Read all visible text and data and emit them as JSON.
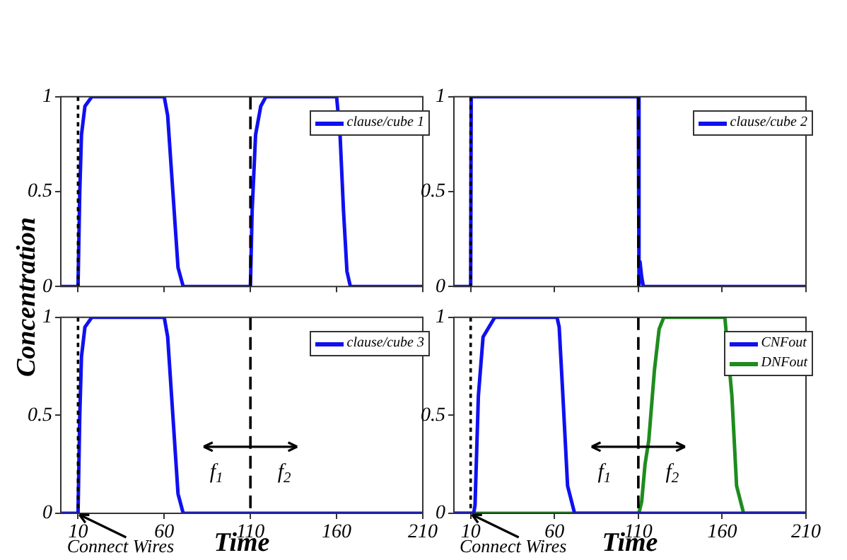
{
  "chart_data": [
    {
      "type": "line",
      "ylabel": "Concentration",
      "xlim": [
        0,
        210
      ],
      "ylim": [
        0,
        1
      ],
      "xticks": [
        10,
        60,
        110,
        160,
        210
      ],
      "yticks": [
        0,
        0.5,
        1
      ],
      "tick_labels": "y",
      "grid": false,
      "legend": "top right",
      "marker": "none",
      "line_style": "solid",
      "series": [
        {
          "name": "clause/cube 1",
          "color": "#1010f0",
          "x": [
            0,
            10,
            11,
            12,
            14,
            18,
            60,
            62,
            65,
            68,
            71,
            110,
            111,
            113,
            116,
            119,
            160,
            162,
            164,
            166,
            168,
            210
          ],
          "values": [
            0,
            0,
            0.5,
            0.8,
            0.95,
            1,
            1,
            0.9,
            0.5,
            0.1,
            0,
            0,
            0.4,
            0.8,
            0.95,
            1,
            1,
            0.8,
            0.4,
            0.08,
            0,
            0
          ]
        }
      ],
      "ref_lines": [
        {
          "axis": "x",
          "value": 10,
          "color": "#000000",
          "line_style": "dotted"
        },
        {
          "axis": "x",
          "value": 110,
          "color": "#000000",
          "line_style": "dashed"
        }
      ]
    },
    {
      "type": "line",
      "xlim": [
        0,
        210
      ],
      "ylim": [
        0,
        1
      ],
      "xticks": [
        10,
        60,
        110,
        160,
        210
      ],
      "yticks": [
        0,
        0.5,
        1
      ],
      "tick_labels": "y",
      "grid": false,
      "legend": "top right",
      "marker": "none",
      "line_style": "solid",
      "series": [
        {
          "name": "clause/cube 2",
          "color": "#1010f0",
          "x": [
            0,
            10,
            10.3,
            110,
            110.4,
            111,
            112,
            113,
            210
          ],
          "values": [
            0,
            0,
            1,
            1,
            0,
            0.13,
            0.05,
            0,
            0
          ]
        }
      ],
      "ref_lines": [
        {
          "axis": "x",
          "value": 10,
          "color": "#000000",
          "line_style": "dotted"
        },
        {
          "axis": "x",
          "value": 110,
          "color": "#000000",
          "line_style": "dashed"
        }
      ]
    },
    {
      "type": "line",
      "xlabel": "Time",
      "xlim": [
        0,
        210
      ],
      "ylim": [
        0,
        1
      ],
      "xticks": [
        10,
        60,
        110,
        160,
        210
      ],
      "yticks": [
        0,
        0.5,
        1
      ],
      "grid": false,
      "legend": "top right",
      "marker": "none",
      "line_style": "solid",
      "series": [
        {
          "name": "clause/cube 3",
          "color": "#1010f0",
          "x": [
            0,
            10,
            11,
            12,
            14,
            18,
            60,
            62,
            65,
            68,
            71,
            210
          ],
          "values": [
            0,
            0,
            0.5,
            0.8,
            0.95,
            1,
            1,
            0.9,
            0.5,
            0.1,
            0,
            0
          ]
        }
      ],
      "ref_lines": [
        {
          "axis": "x",
          "value": 10,
          "color": "#000000",
          "line_style": "dotted"
        },
        {
          "axis": "x",
          "value": 110,
          "color": "#000000",
          "line_style": "dashed"
        }
      ],
      "annotations": [
        {
          "text": "Connect Wires",
          "x": 10,
          "y": 0
        },
        "f$_{1}$",
        "f$_{2}$"
      ]
    },
    {
      "type": "line",
      "xlabel": "Time",
      "xlim": [
        0,
        210
      ],
      "ylim": [
        0,
        1
      ],
      "xticks": [
        10,
        60,
        110,
        160,
        210
      ],
      "yticks": [
        0,
        0.5,
        1
      ],
      "grid": false,
      "legend": "top right",
      "marker": "none",
      "line_style": "solid",
      "series": [
        {
          "name": "CNFout",
          "color": "#1010f0",
          "x": [
            0,
            11.8,
            12.6,
            14.6,
            17.4,
            24.4,
            61.5,
            62.8,
            65,
            67.8,
            72,
            210
          ],
          "values": [
            0,
            0,
            0.04,
            0.6,
            0.9,
            1,
            1,
            0.95,
            0.6,
            0.14,
            0,
            0
          ]
        },
        {
          "name": "DNFout",
          "color": "#1e8c1e",
          "x": [
            0,
            110.3,
            112,
            114,
            116.2,
            119.6,
            122.4,
            125.2,
            161.6,
            165.8,
            168.6,
            172.8,
            210
          ],
          "values": [
            0,
            0,
            0.06,
            0.25,
            0.37,
            0.73,
            0.94,
            1,
            1,
            0.6,
            0.14,
            0,
            0
          ]
        }
      ],
      "ref_lines": [
        {
          "axis": "x",
          "value": 10,
          "color": "#000000",
          "line_style": "dotted"
        },
        {
          "axis": "x",
          "value": 110,
          "color": "#000000",
          "line_style": "dashed"
        }
      ],
      "annotations": [
        {
          "text": "Connect Wires",
          "x": 10,
          "y": 0
        },
        "f$_{1}$",
        "f$_{2}$"
      ]
    }
  ]
}
